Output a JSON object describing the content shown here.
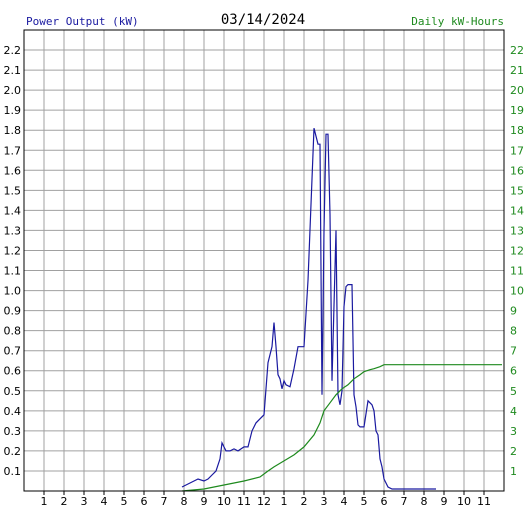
{
  "header": {
    "left_label": "Power Output (kW)",
    "date": "03/14/2024",
    "right_label": "Daily kW-Hours"
  },
  "colors": {
    "power": "#1a1aa0",
    "energy": "#1e8a1e",
    "grid": "#a0a0a0",
    "axis": "#000000",
    "background": "#ffffff"
  },
  "chart_data": {
    "type": "line",
    "title": "03/14/2024",
    "xlabel": "",
    "ylabel": "Power Output (kW)",
    "y2label": "Daily kW-Hours",
    "grid": true,
    "xlim": [
      0,
      24
    ],
    "ylim": [
      0,
      2.3
    ],
    "y2lim": [
      0,
      23
    ],
    "x_ticks": [
      "1",
      "2",
      "3",
      "4",
      "5",
      "6",
      "7",
      "8",
      "9",
      "10",
      "11",
      "12",
      "1",
      "2",
      "3",
      "4",
      "5",
      "6",
      "7",
      "8",
      "9",
      "10",
      "11"
    ],
    "y_ticks": [
      "0.1",
      "0.2",
      "0.3",
      "0.4",
      "0.5",
      "0.6",
      "0.7",
      "0.8",
      "0.9",
      "1.0",
      "1.1",
      "1.2",
      "1.3",
      "1.4",
      "1.5",
      "1.6",
      "1.7",
      "1.8",
      "1.9",
      "2.0",
      "2.1",
      "2.2"
    ],
    "y2_ticks": [
      "1",
      "2",
      "3",
      "4",
      "5",
      "6",
      "7",
      "8",
      "9",
      "10",
      "11",
      "12",
      "13",
      "14",
      "15",
      "16",
      "17",
      "18",
      "19",
      "20",
      "21",
      "22"
    ],
    "series": [
      {
        "name": "Power Output (kW)",
        "axis": "left",
        "x": [
          7.9,
          8.1,
          8.3,
          8.5,
          8.7,
          9.0,
          9.2,
          9.4,
          9.6,
          9.8,
          9.9,
          10.1,
          10.3,
          10.5,
          10.7,
          11.0,
          11.2,
          11.4,
          11.6,
          11.8,
          12.0,
          12.2,
          12.4,
          12.5,
          12.6,
          12.7,
          12.8,
          12.9,
          13.0,
          13.1,
          13.3,
          13.5,
          13.7,
          13.9,
          14.0,
          14.2,
          14.5,
          14.7,
          14.8,
          14.9,
          15.0,
          15.1,
          15.2,
          15.3,
          15.4,
          15.6,
          15.7,
          15.8,
          15.9,
          16.0,
          16.1,
          16.2,
          16.4,
          16.5,
          16.6,
          16.7,
          16.8,
          16.9,
          17.0,
          17.2,
          17.4,
          17.5,
          17.6,
          17.7,
          17.8,
          17.9,
          18.0,
          18.2,
          18.4,
          18.6,
          18.7,
          18.8,
          18.9,
          19.0,
          19.2,
          19.4,
          19.6,
          19.8,
          20.0,
          20.2,
          20.4,
          20.6
        ],
        "values": [
          0.02,
          0.03,
          0.04,
          0.05,
          0.06,
          0.05,
          0.06,
          0.08,
          0.1,
          0.16,
          0.24,
          0.2,
          0.2,
          0.21,
          0.2,
          0.22,
          0.22,
          0.3,
          0.34,
          0.36,
          0.38,
          0.64,
          0.72,
          0.84,
          0.72,
          0.58,
          0.56,
          0.51,
          0.55,
          0.53,
          0.52,
          0.61,
          0.72,
          0.72,
          0.72,
          1.05,
          1.81,
          1.73,
          1.73,
          0.48,
          1.3,
          1.78,
          1.78,
          1.38,
          0.55,
          1.3,
          0.48,
          0.43,
          0.5,
          0.92,
          1.02,
          1.03,
          1.03,
          0.48,
          0.42,
          0.33,
          0.32,
          0.32,
          0.32,
          0.45,
          0.43,
          0.4,
          0.3,
          0.28,
          0.16,
          0.12,
          0.06,
          0.02,
          0.01,
          0.01,
          0.01,
          0.01,
          0.01,
          0.01,
          0.01,
          0.01,
          0.01,
          0.01,
          0.01,
          0.01,
          0.01,
          0.01
        ]
      },
      {
        "name": "Daily kW-Hours",
        "axis": "right",
        "x": [
          7.9,
          9.0,
          10.0,
          11.0,
          11.8,
          12.2,
          12.5,
          13.0,
          13.5,
          14.0,
          14.5,
          14.8,
          15.0,
          15.3,
          15.6,
          15.9,
          16.2,
          16.5,
          16.8,
          17.0,
          17.3,
          17.5,
          17.8,
          18.0,
          18.5,
          19.0,
          19.5,
          20.0,
          21.0,
          22.0,
          23.0,
          23.9
        ],
        "values": [
          0.0,
          0.1,
          0.3,
          0.5,
          0.7,
          1.0,
          1.2,
          1.5,
          1.8,
          2.2,
          2.8,
          3.4,
          4.0,
          4.4,
          4.8,
          5.1,
          5.3,
          5.6,
          5.8,
          5.95,
          6.05,
          6.1,
          6.2,
          6.3,
          6.3,
          6.3,
          6.3,
          6.3,
          6.3,
          6.3,
          6.3,
          6.3
        ]
      }
    ]
  }
}
